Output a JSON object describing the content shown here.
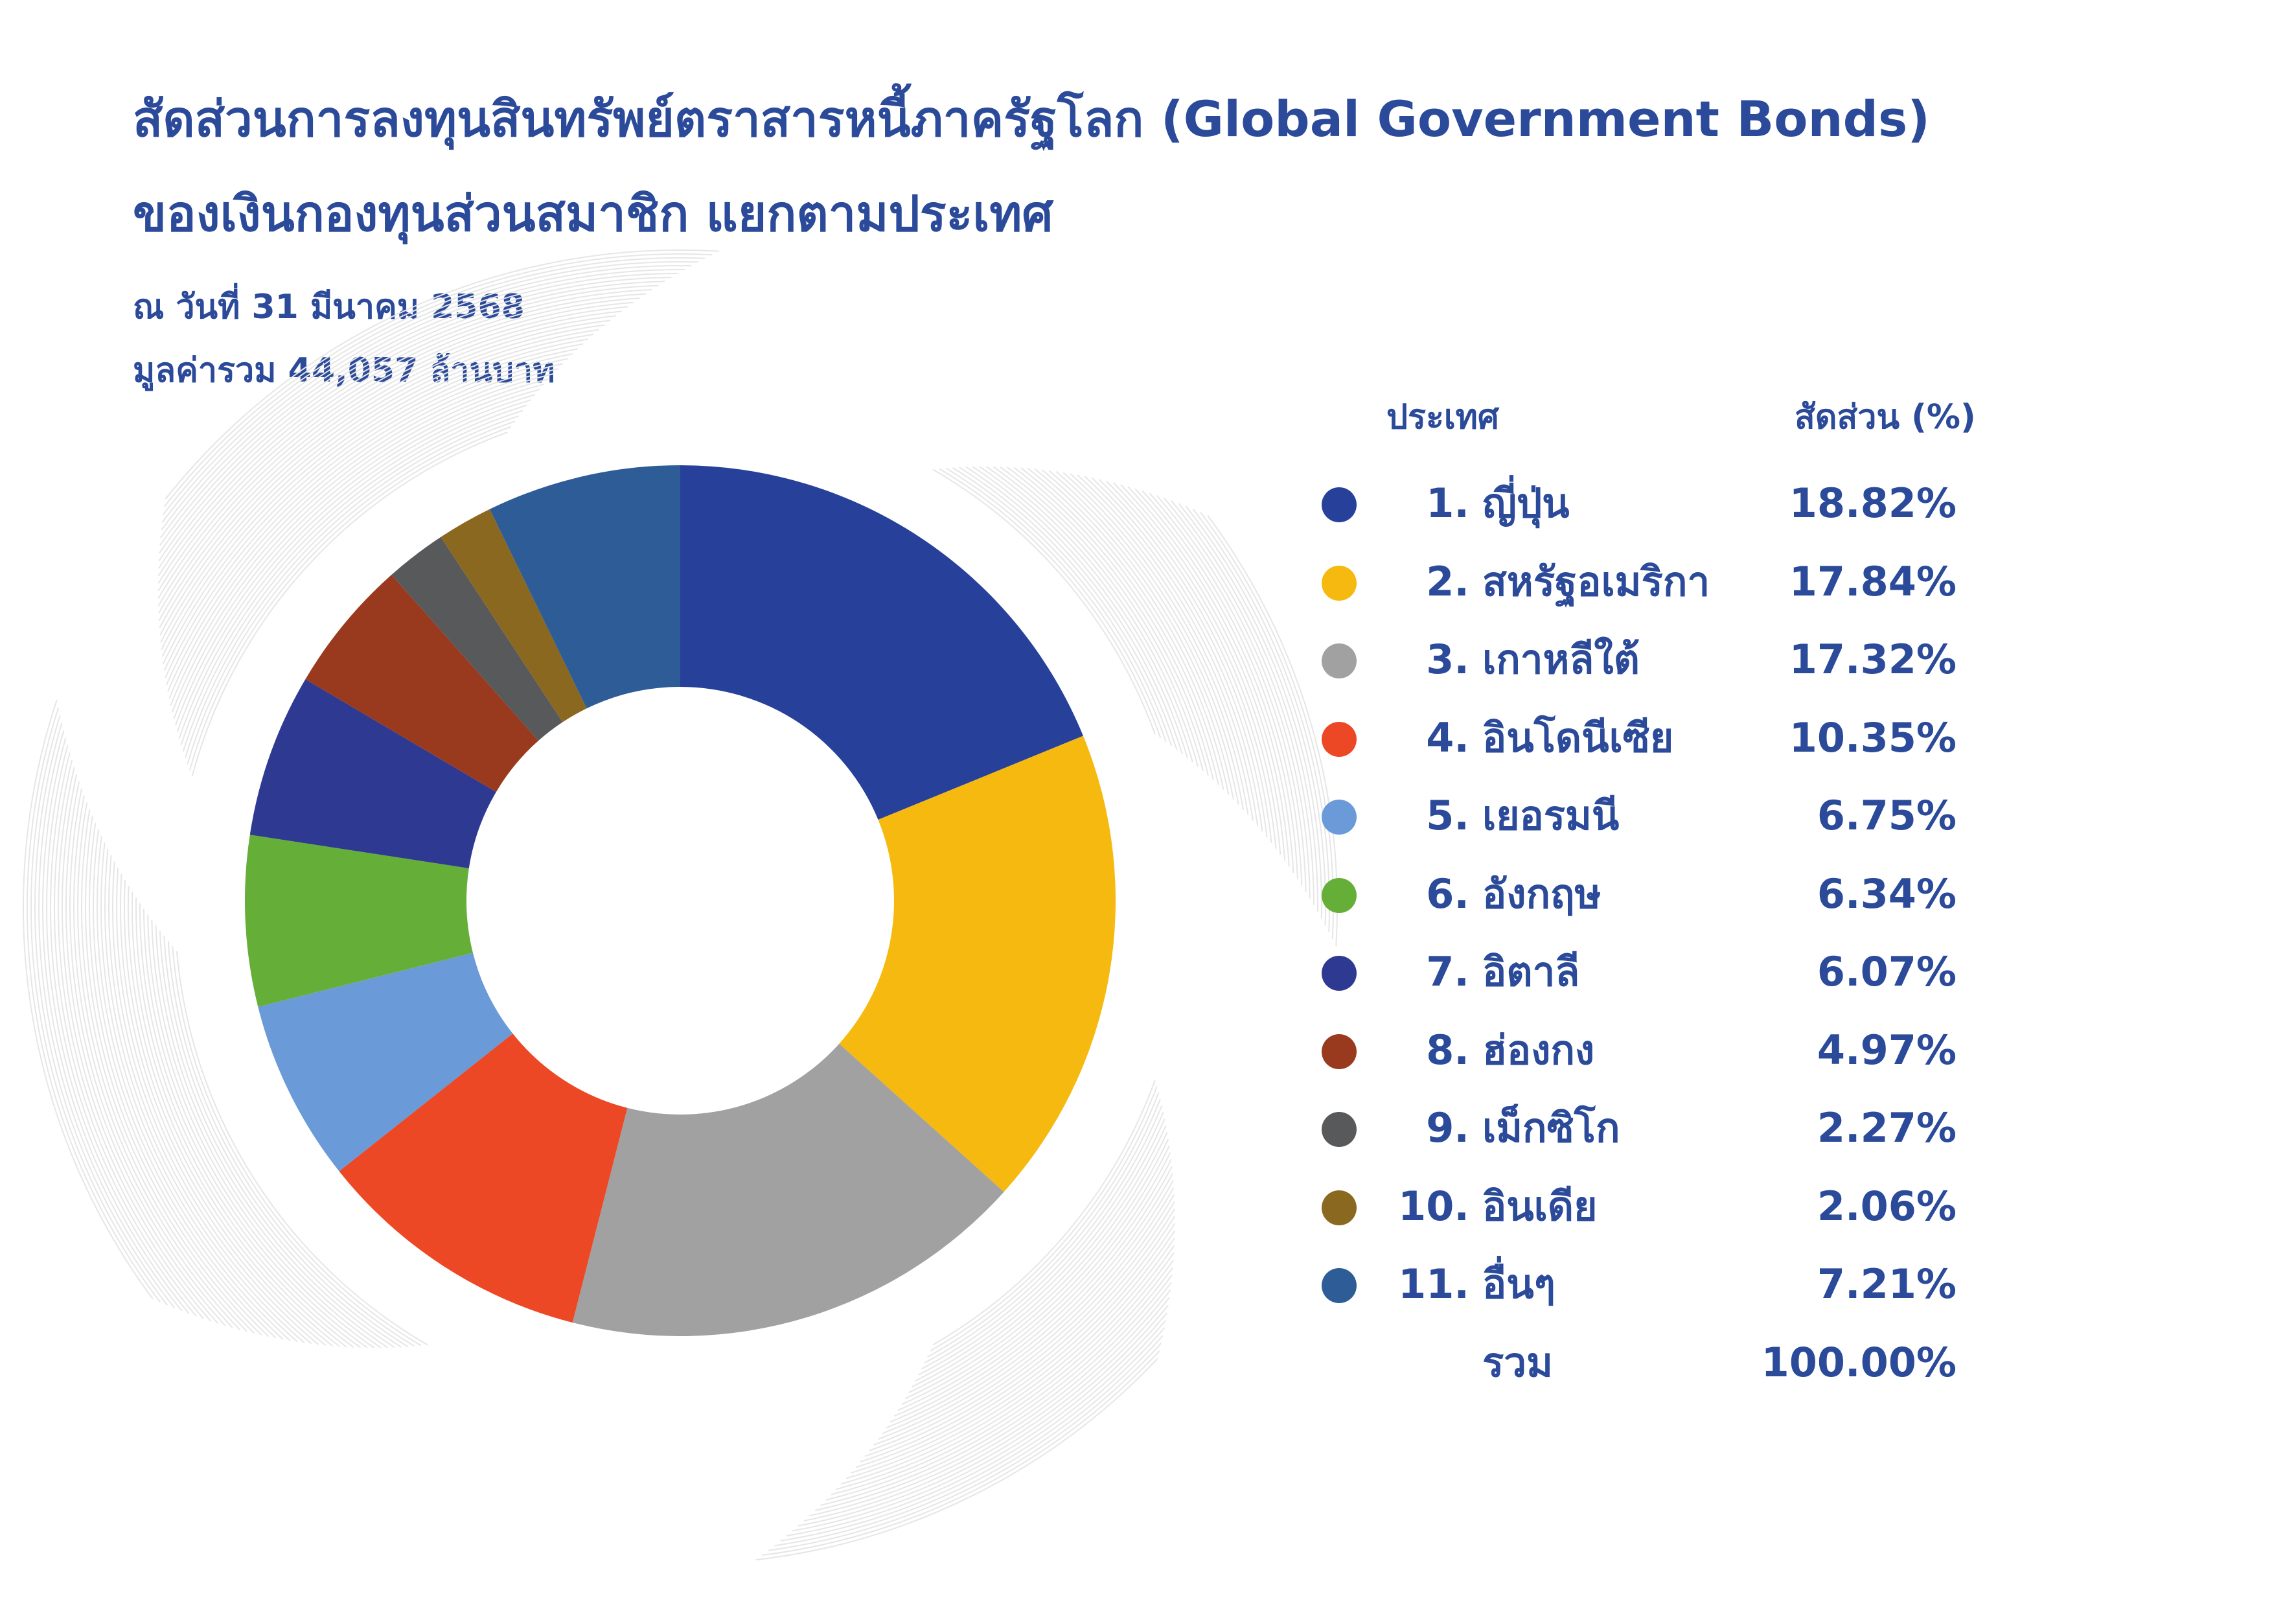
{
  "title": {
    "line1": "สัดส่วนการลงทุนสินทรัพย์ตราสารหนี้ภาครัฐโลก (Global Government Bonds)",
    "line2": "ของเงินกองทุนส่วนสมาชิก แยกตามประเทศ"
  },
  "subtitle": {
    "date": "ณ วันที่ 31 มีนาคม 2568",
    "total": "มูลค่ารวม 44,057 ล้านบาท"
  },
  "legend": {
    "header_country": "ประเทศ",
    "header_share": "สัดส่วน (%)",
    "total_label": "รวม",
    "total_value": "100.00%"
  },
  "chart_data": {
    "type": "pie",
    "style": "donut",
    "title": "สัดส่วนการลงทุนสินทรัพย์ตราสารหนี้ภาครัฐโลก (Global Government Bonds) ของเงินกองทุนส่วนสมาชิก แยกตามประเทศ",
    "categories": [
      "ญี่ปุ่น",
      "สหรัฐอเมริกา",
      "เกาหลีใต้",
      "อินโดนีเซีย",
      "เยอรมนี",
      "อังกฤษ",
      "อิตาลี",
      "ฮ่องกง",
      "เม็กซิโก",
      "อินเดีย",
      "อื่นๆ"
    ],
    "values": [
      18.82,
      17.84,
      17.32,
      10.35,
      6.75,
      6.34,
      6.07,
      4.97,
      2.27,
      2.06,
      7.21
    ],
    "colors": [
      "#27419b",
      "#f6b90f",
      "#a1a1a1",
      "#ed4825",
      "#6a9ad7",
      "#65af38",
      "#2e3991",
      "#993a1f",
      "#58595b",
      "#8b6820",
      "#2e5c96"
    ],
    "legend_position": "right",
    "items": [
      {
        "num": "1.",
        "name": "ญี่ปุ่น",
        "pct": "18.82%",
        "color": "#27419b"
      },
      {
        "num": "2.",
        "name": "สหรัฐอเมริกา",
        "pct": "17.84%",
        "color": "#f6b90f"
      },
      {
        "num": "3.",
        "name": "เกาหลีใต้",
        "pct": "17.32%",
        "color": "#a1a1a1"
      },
      {
        "num": "4.",
        "name": "อินโดนีเซีย",
        "pct": "10.35%",
        "color": "#ed4825"
      },
      {
        "num": "5.",
        "name": "เยอรมนี",
        "pct": "6.75%",
        "color": "#6a9ad7"
      },
      {
        "num": "6.",
        "name": "อังกฤษ",
        "pct": "6.34%",
        "color": "#65af38"
      },
      {
        "num": "7.",
        "name": "อิตาลี",
        "pct": "6.07%",
        "color": "#2e3991"
      },
      {
        "num": "8.",
        "name": "ฮ่องกง",
        "pct": "4.97%",
        "color": "#993a1f"
      },
      {
        "num": "9.",
        "name": "เม็กซิโก",
        "pct": "2.27%",
        "color": "#58595b"
      },
      {
        "num": "10.",
        "name": "อินเดีย",
        "pct": "2.06%",
        "color": "#8b6820"
      },
      {
        "num": "11.",
        "name": "อื่นๆ",
        "pct": "7.21%",
        "color": "#2e5c96"
      }
    ]
  }
}
